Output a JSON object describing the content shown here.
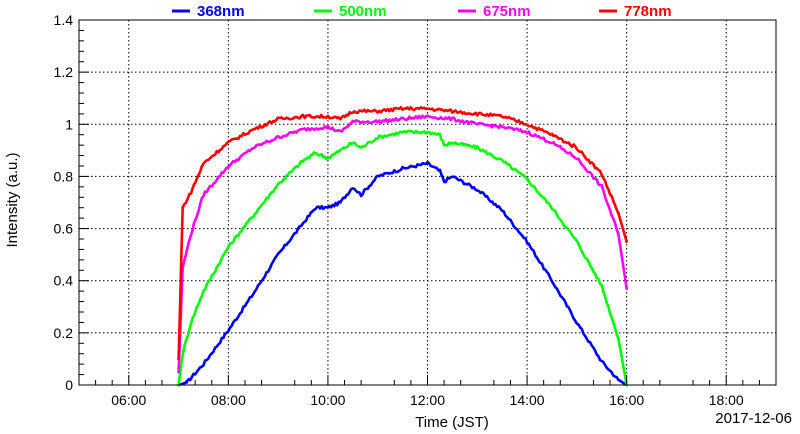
{
  "chart_data": {
    "type": "line",
    "title": "",
    "xlabel": "Time (JST)",
    "ylabel": "Intensity (a.u.)",
    "date_text": "2017-12-06",
    "xlim": [
      "05:00",
      "19:00"
    ],
    "ylim": [
      0,
      1.4
    ],
    "x_ticks": [
      "06:00",
      "08:00",
      "10:00",
      "12:00",
      "14:00",
      "16:00",
      "18:00"
    ],
    "y_ticks": [
      "0",
      "0.2",
      "0.4",
      "0.6",
      "0.8",
      "1",
      "1.2",
      "1.4"
    ],
    "grid": true,
    "legend_position": "top",
    "series": [
      {
        "name": "368nm",
        "color": "#0000ff",
        "points": [
          [
            "07:00",
            0.0
          ],
          [
            "07:10",
            0.01
          ],
          [
            "07:30",
            0.08
          ],
          [
            "08:00",
            0.21
          ],
          [
            "08:30",
            0.35
          ],
          [
            "09:00",
            0.5
          ],
          [
            "09:30",
            0.62
          ],
          [
            "09:45",
            0.68
          ],
          [
            "10:00",
            0.68
          ],
          [
            "10:15",
            0.7
          ],
          [
            "10:30",
            0.76
          ],
          [
            "10:40",
            0.73
          ],
          [
            "11:00",
            0.8
          ],
          [
            "11:30",
            0.83
          ],
          [
            "12:00",
            0.85
          ],
          [
            "12:15",
            0.82
          ],
          [
            "12:20",
            0.78
          ],
          [
            "12:30",
            0.8
          ],
          [
            "13:00",
            0.75
          ],
          [
            "13:30",
            0.67
          ],
          [
            "14:00",
            0.55
          ],
          [
            "14:30",
            0.4
          ],
          [
            "15:00",
            0.24
          ],
          [
            "15:30",
            0.09
          ],
          [
            "15:50",
            0.02
          ],
          [
            "16:00",
            0.0
          ]
        ]
      },
      {
        "name": "500nm",
        "color": "#00ff00",
        "points": [
          [
            "07:00",
            0.0
          ],
          [
            "07:05",
            0.12
          ],
          [
            "07:15",
            0.24
          ],
          [
            "07:30",
            0.36
          ],
          [
            "08:00",
            0.53
          ],
          [
            "08:30",
            0.65
          ],
          [
            "09:00",
            0.77
          ],
          [
            "09:30",
            0.86
          ],
          [
            "09:45",
            0.89
          ],
          [
            "10:00",
            0.87
          ],
          [
            "10:15",
            0.9
          ],
          [
            "10:30",
            0.93
          ],
          [
            "10:40",
            0.91
          ],
          [
            "11:00",
            0.95
          ],
          [
            "11:30",
            0.97
          ],
          [
            "12:00",
            0.97
          ],
          [
            "12:15",
            0.96
          ],
          [
            "12:20",
            0.92
          ],
          [
            "12:30",
            0.93
          ],
          [
            "13:00",
            0.91
          ],
          [
            "13:30",
            0.86
          ],
          [
            "14:00",
            0.79
          ],
          [
            "14:30",
            0.68
          ],
          [
            "15:00",
            0.55
          ],
          [
            "15:30",
            0.38
          ],
          [
            "15:50",
            0.18
          ],
          [
            "16:00",
            0.0
          ]
        ]
      },
      {
        "name": "675nm",
        "color": "#ff00ff",
        "points": [
          [
            "07:00",
            0.05
          ],
          [
            "07:05",
            0.45
          ],
          [
            "07:15",
            0.58
          ],
          [
            "07:30",
            0.73
          ],
          [
            "08:00",
            0.84
          ],
          [
            "08:30",
            0.91
          ],
          [
            "09:00",
            0.95
          ],
          [
            "09:30",
            0.98
          ],
          [
            "10:00",
            0.99
          ],
          [
            "10:15",
            0.97
          ],
          [
            "10:30",
            1.01
          ],
          [
            "11:00",
            1.01
          ],
          [
            "11:30",
            1.02
          ],
          [
            "12:00",
            1.03
          ],
          [
            "12:30",
            1.02
          ],
          [
            "13:00",
            1.0
          ],
          [
            "13:30",
            0.99
          ],
          [
            "14:00",
            0.97
          ],
          [
            "14:30",
            0.93
          ],
          [
            "15:00",
            0.87
          ],
          [
            "15:30",
            0.76
          ],
          [
            "15:50",
            0.58
          ],
          [
            "16:00",
            0.37
          ]
        ]
      },
      {
        "name": "778nm",
        "color": "#ff0000",
        "points": [
          [
            "07:00",
            0.1
          ],
          [
            "07:05",
            0.68
          ],
          [
            "07:15",
            0.74
          ],
          [
            "07:30",
            0.85
          ],
          [
            "08:00",
            0.93
          ],
          [
            "08:30",
            0.98
          ],
          [
            "09:00",
            1.02
          ],
          [
            "09:30",
            1.03
          ],
          [
            "10:00",
            1.03
          ],
          [
            "10:15",
            1.02
          ],
          [
            "10:30",
            1.05
          ],
          [
            "11:00",
            1.05
          ],
          [
            "11:30",
            1.06
          ],
          [
            "12:00",
            1.06
          ],
          [
            "12:30",
            1.05
          ],
          [
            "13:00",
            1.04
          ],
          [
            "13:30",
            1.03
          ],
          [
            "14:00",
            1.0
          ],
          [
            "14:30",
            0.96
          ],
          [
            "15:00",
            0.91
          ],
          [
            "15:30",
            0.81
          ],
          [
            "15:50",
            0.66
          ],
          [
            "16:00",
            0.55
          ]
        ]
      }
    ]
  }
}
